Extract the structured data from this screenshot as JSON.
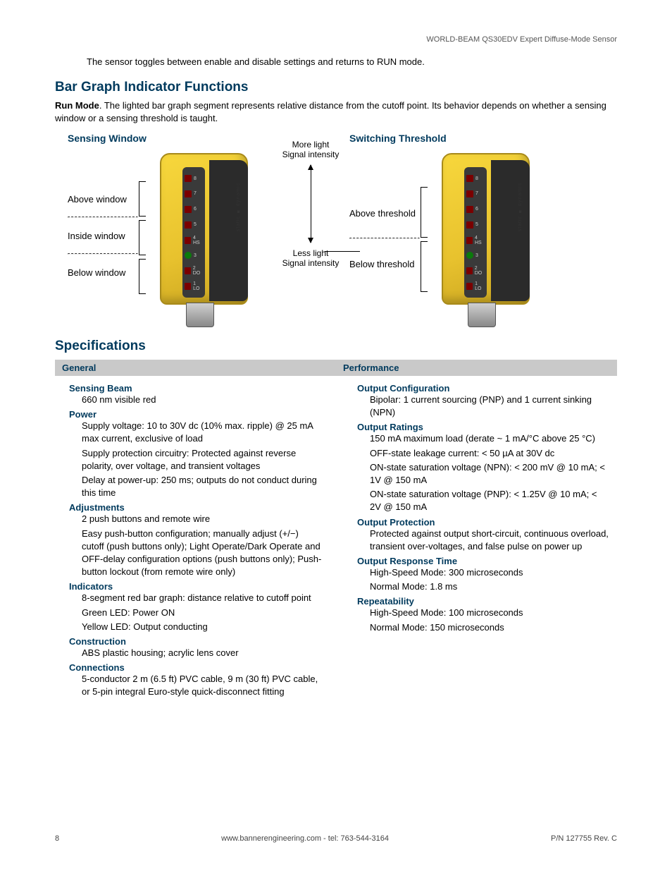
{
  "header": {
    "product": "WORLD-BEAM QS30EDV Expert Diffuse-Mode Sensor"
  },
  "intro": "The sensor toggles between enable and disable settings and returns to RUN mode.",
  "section1": {
    "title": "Bar Graph Indicator Functions",
    "run_mode_bold": "Run Mode",
    "run_mode_text": ". The lighted bar graph segment represents relative distance from the cutoff point. Its behavior depends on whether a sensing window or a sensing threshold is taught."
  },
  "diagrams": {
    "left": {
      "title": "Sensing Window",
      "labels": [
        "Above window",
        "Inside window",
        "Below window"
      ]
    },
    "arrow": {
      "top1": "More light",
      "top2": "Signal intensity",
      "bot1": "Less light",
      "bot2": "Signal intensity"
    },
    "right": {
      "title": "Switching Threshold",
      "labels": [
        "Above threshold",
        "Below threshold"
      ]
    },
    "sensor_segments": [
      "8",
      "7",
      "6",
      "5",
      "4 HS",
      "3",
      "2 DO",
      "1 LO"
    ],
    "side_text": "static ■ dynamic"
  },
  "section2": {
    "title": "Specifications",
    "col_headers": [
      "General",
      "Performance"
    ],
    "general": [
      {
        "label": "Sensing Beam",
        "lines": [
          "660 nm visible red"
        ]
      },
      {
        "label": "Power",
        "lines": [
          "Supply voltage: 10 to 30V dc (10% max. ripple) @ 25 mA max current, exclusive of load",
          "Supply protection circuitry: Protected against reverse polarity, over voltage, and transient voltages",
          "Delay at power-up: 250 ms; outputs do not conduct during this time"
        ]
      },
      {
        "label": "Adjustments",
        "lines": [
          "2 push buttons and remote wire",
          "Easy push-button configuration; manually adjust (+/−) cutoff (push buttons only); Light Operate/Dark Operate and OFF-delay configuration options (push buttons only); Push-button lockout (from remote wire only)"
        ]
      },
      {
        "label": "Indicators",
        "lines": [
          "8-segment red bar graph: distance relative to cutoff point",
          "Green LED: Power ON",
          "Yellow LED: Output conducting"
        ]
      },
      {
        "label": "Construction",
        "lines": [
          "ABS plastic housing; acrylic lens cover"
        ]
      },
      {
        "label": "Connections",
        "lines": [
          "5-conductor 2 m (6.5 ft) PVC cable, 9 m (30 ft) PVC cable, or 5-pin integral Euro-style quick-disconnect fitting"
        ]
      }
    ],
    "performance": [
      {
        "label": "Output Configuration",
        "lines": [
          "Bipolar: 1 current sourcing (PNP) and 1 current sinking (NPN)"
        ]
      },
      {
        "label": "Output Ratings",
        "lines": [
          "150 mA maximum load (derate ~ 1 mA/°C above 25 °C)",
          "OFF-state leakage current: < 50 µA at 30V dc",
          "ON-state saturation voltage (NPN): < 200 mV @ 10 mA; < 1V @ 150 mA",
          "ON-state saturation voltage (PNP): < 1.25V @ 10 mA; < 2V @ 150 mA"
        ]
      },
      {
        "label": "Output Protection",
        "lines": [
          "Protected against output short-circuit, continuous overload, transient over-voltages, and false pulse on power up"
        ]
      },
      {
        "label": "Output Response Time",
        "lines": [
          "High-Speed Mode: 300 microseconds",
          "Normal Mode: 1.8 ms"
        ]
      },
      {
        "label": "Repeatability",
        "lines": [
          "High-Speed Mode: 100 microseconds",
          "Normal Mode: 150 microseconds"
        ]
      }
    ]
  },
  "footer": {
    "page": "8",
    "center": "www.bannerengineering.com - tel: 763-544-3164",
    "right": "P/N 127755 Rev. C"
  }
}
